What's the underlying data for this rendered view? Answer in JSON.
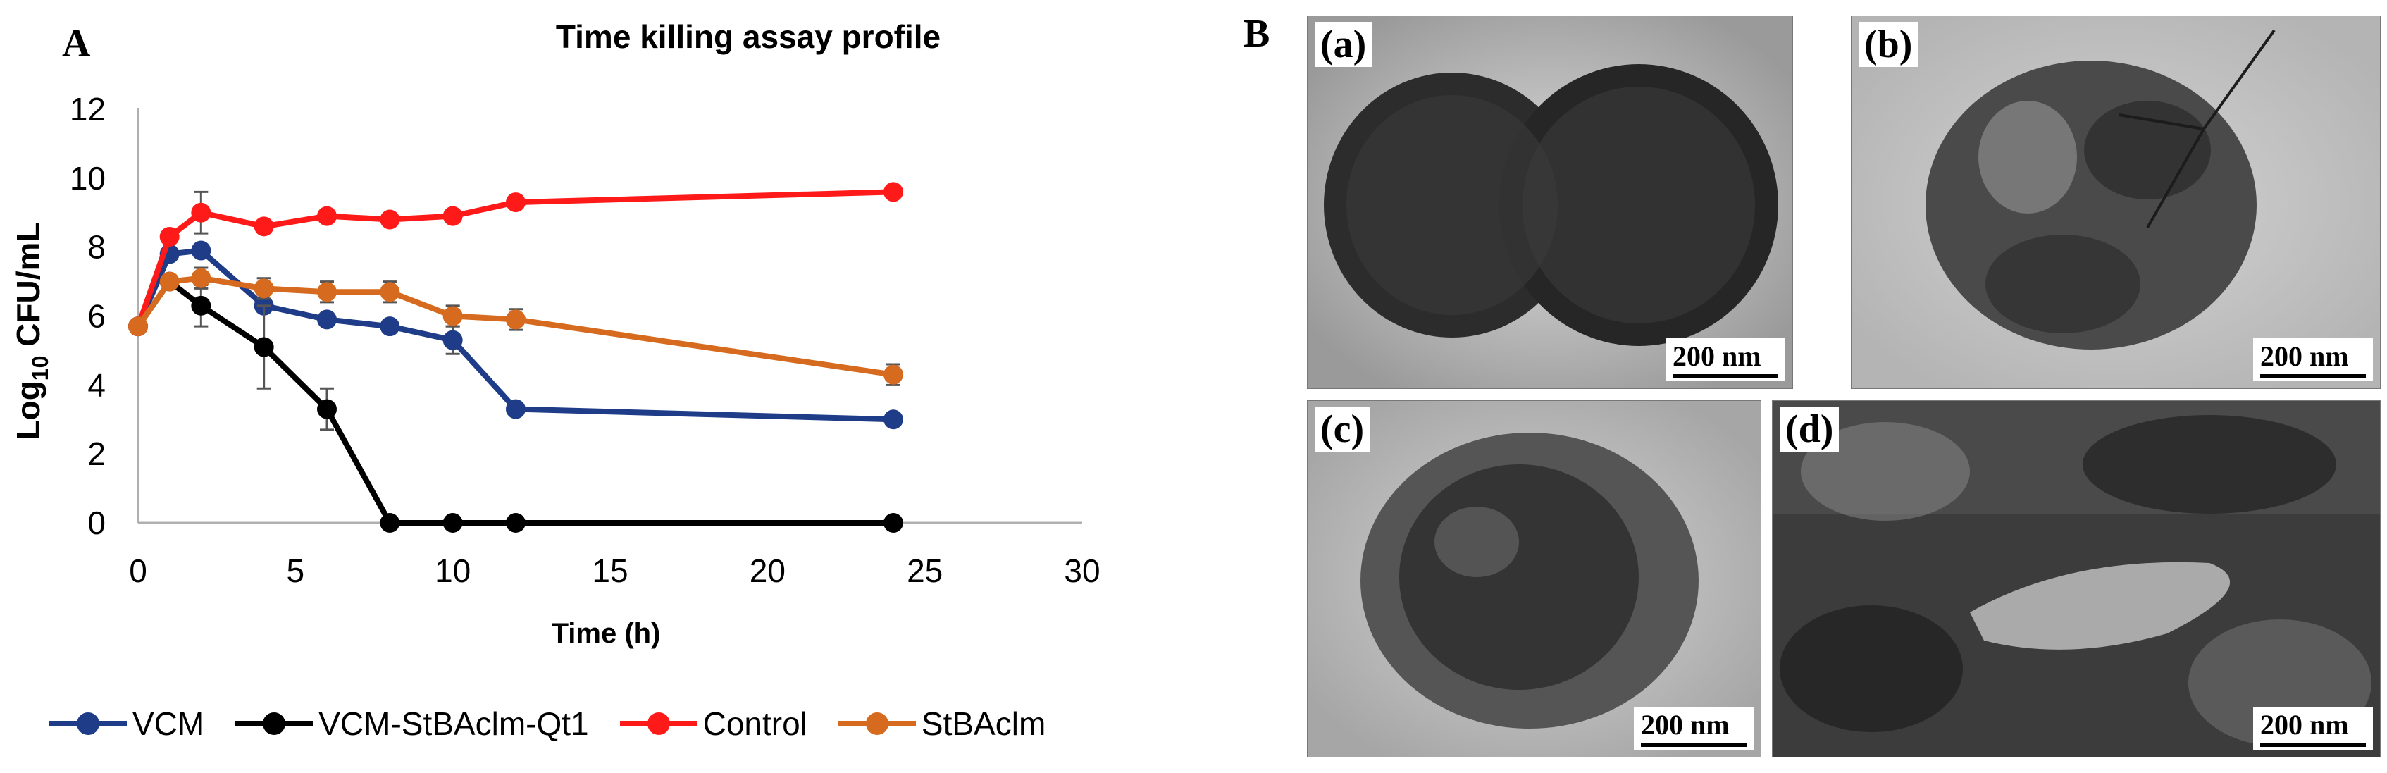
{
  "panel_a_letter": "A",
  "panel_b_letter": "B",
  "chart_data": {
    "type": "line",
    "title": "Time killing assay profile",
    "xlabel": "Time (h)",
    "ylabel_prefix": "Log",
    "ylabel_subscript": "10",
    "ylabel_suffix": " CFU/mL",
    "xlim": [
      0,
      30
    ],
    "ylim": [
      0,
      12
    ],
    "xticks": [
      0,
      5,
      10,
      15,
      20,
      25,
      30
    ],
    "yticks": [
      0,
      2,
      4,
      6,
      8,
      10,
      12
    ],
    "grid": false,
    "legend_position": "bottom",
    "series": [
      {
        "name": "VCM",
        "color": "#1f3c88",
        "x": [
          0,
          1,
          2,
          4,
          6,
          8,
          10,
          12,
          24
        ],
        "y": [
          5.7,
          7.8,
          7.9,
          6.3,
          5.9,
          5.7,
          5.3,
          3.3,
          3.0
        ],
        "err": [
          0,
          0,
          0,
          0,
          0,
          0,
          0.4,
          0.1,
          0
        ]
      },
      {
        "name": "VCM-StBAclm-Qt1",
        "color": "#000000",
        "x": [
          0,
          1,
          2,
          4,
          6,
          8,
          10,
          12,
          24
        ],
        "y": [
          5.7,
          7.0,
          6.3,
          5.1,
          3.3,
          0,
          0,
          0,
          0
        ],
        "err": [
          0,
          0,
          0.6,
          1.2,
          0.6,
          0,
          0,
          0,
          0
        ]
      },
      {
        "name": "Control",
        "color": "#ff1a1a",
        "x": [
          0,
          1,
          2,
          4,
          6,
          8,
          10,
          12,
          24
        ],
        "y": [
          5.7,
          8.3,
          9.0,
          8.6,
          8.9,
          8.8,
          8.9,
          9.3,
          9.6
        ],
        "err": [
          0,
          0,
          0.6,
          0,
          0,
          0,
          0,
          0,
          0
        ]
      },
      {
        "name": "StBAclm",
        "color": "#d66a1f",
        "x": [
          0,
          1,
          2,
          4,
          6,
          8,
          10,
          12,
          24
        ],
        "y": [
          5.7,
          7.0,
          7.1,
          6.8,
          6.7,
          6.7,
          6.0,
          5.9,
          4.3
        ],
        "err": [
          0,
          0,
          0.3,
          0.3,
          0.3,
          0.3,
          0.3,
          0.3,
          0.3
        ]
      }
    ]
  },
  "tem_panels": [
    {
      "label": "(a)",
      "scale": "200 nm"
    },
    {
      "label": "(b)",
      "scale": "200 nm"
    },
    {
      "label": "(c)",
      "scale": "200 nm"
    },
    {
      "label": "(d)",
      "scale": "200 nm"
    }
  ]
}
